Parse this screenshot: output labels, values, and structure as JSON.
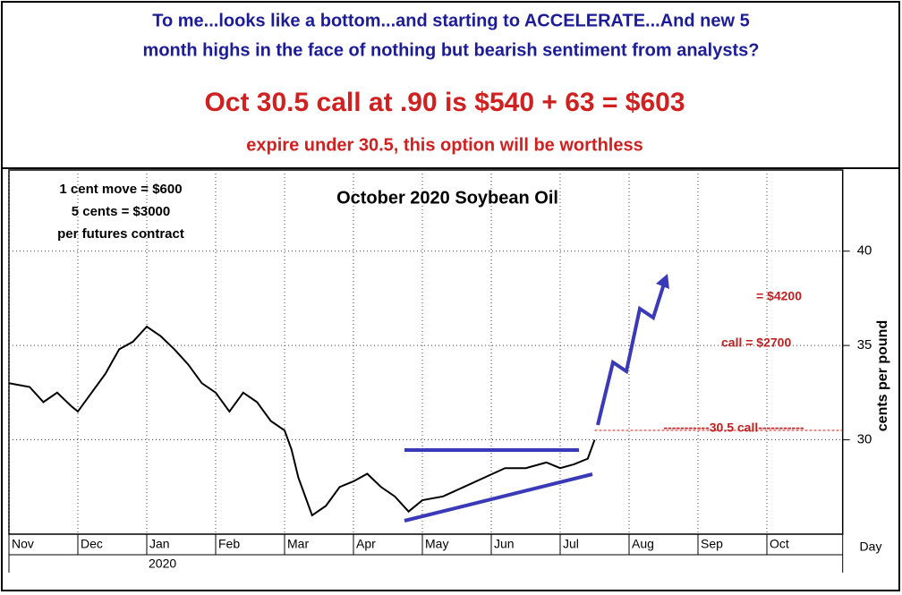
{
  "header": {
    "line1": "To me...looks like a bottom...and starting to ACCELERATE...And new 5",
    "line2": "month highs in the face of nothing but bearish sentiment from analysts?",
    "headline": "Oct 30.5 call at .90 is $540 + 63 = $603",
    "subline": "expire under 30.5, this option will be worthless"
  },
  "chart_data": {
    "type": "line",
    "title": "October 2020 Soybean Oil",
    "notes": [
      "1 cent move = $600",
      "5 cents = $3000",
      "per futures contract"
    ],
    "y_label": "cents per pound",
    "x_label": "Day",
    "year_label": "2020",
    "strike_label": "-----------30.5 call-----------",
    "strike": 30.5,
    "target_labels": [
      "= $4200",
      "call = $2700"
    ],
    "x": [
      0,
      0.3,
      0.5,
      0.7,
      0.9,
      1.0,
      1.2,
      1.4,
      1.6,
      1.8,
      2.0,
      2.2,
      2.4,
      2.6,
      2.8,
      3.0,
      3.2,
      3.4,
      3.6,
      3.8,
      4.0,
      4.1,
      4.2,
      4.4,
      4.6,
      4.8,
      5.0,
      5.2,
      5.4,
      5.6,
      5.8,
      6.0,
      6.3,
      6.6,
      6.9,
      7.2,
      7.5,
      7.8,
      8.0,
      8.2,
      8.4,
      8.5
    ],
    "series": [
      {
        "name": "Soybean Oil",
        "color": "#000000",
        "values": [
          33.0,
          32.8,
          32.0,
          32.5,
          31.8,
          31.5,
          32.5,
          33.5,
          34.8,
          35.2,
          36.0,
          35.5,
          34.8,
          34.0,
          33.0,
          32.5,
          31.5,
          32.5,
          32.0,
          31.0,
          30.5,
          29.5,
          28.0,
          26.0,
          26.5,
          27.5,
          27.8,
          28.2,
          27.5,
          27.0,
          26.2,
          26.8,
          27.0,
          27.5,
          28.0,
          28.5,
          28.5,
          28.8,
          28.5,
          28.7,
          29.0,
          30.0
        ]
      }
    ],
    "xlim": [
      0,
      12.1
    ],
    "xticks": [
      {
        "value": 0,
        "label": "Nov"
      },
      {
        "value": 1,
        "label": "Dec"
      },
      {
        "value": 2,
        "label": "Jan"
      },
      {
        "value": 3,
        "label": "Feb"
      },
      {
        "value": 4,
        "label": "Mar"
      },
      {
        "value": 5,
        "label": "Apr"
      },
      {
        "value": 6,
        "label": "May"
      },
      {
        "value": 7,
        "label": "Jun"
      },
      {
        "value": 8,
        "label": "Jul"
      },
      {
        "value": 9,
        "label": "Aug"
      },
      {
        "value": 10,
        "label": "Sep"
      },
      {
        "value": 11,
        "label": "Oct"
      }
    ],
    "ylim": [
      25,
      44.3
    ],
    "yticks": [
      30,
      35,
      40
    ],
    "grid": true
  }
}
